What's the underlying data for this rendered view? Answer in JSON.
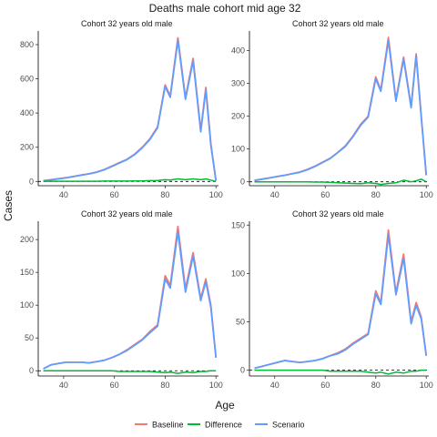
{
  "title": "Deaths male cohort mid age 32",
  "xlabel": "Age",
  "ylabel": "Cases",
  "legend": [
    {
      "name": "Baseline",
      "color": "#F8766D"
    },
    {
      "name": "Difference",
      "color": "#00BA38"
    },
    {
      "name": "Scenario",
      "color": "#619CFF"
    }
  ],
  "chart_data": [
    {
      "type": "line",
      "title": "Cohort 32 years old male",
      "xlim": [
        30,
        101
      ],
      "ylim": [
        -25,
        880
      ],
      "xticks": [
        40,
        60,
        80,
        100
      ],
      "yticks": [
        0,
        200,
        400,
        600,
        800
      ],
      "x": [
        32,
        35,
        38,
        41,
        44,
        47,
        50,
        53,
        56,
        59,
        62,
        65,
        68,
        71,
        74,
        77,
        80,
        82,
        85,
        88,
        91,
        94,
        96,
        98,
        100
      ],
      "series": [
        {
          "name": "Baseline",
          "values": [
            5,
            10,
            16,
            22,
            30,
            38,
            45,
            55,
            70,
            90,
            110,
            130,
            160,
            200,
            250,
            320,
            565,
            500,
            840,
            490,
            720,
            300,
            550,
            220,
            5
          ]
        },
        {
          "name": "Scenario",
          "values": [
            4,
            9,
            15,
            21,
            29,
            37,
            44,
            54,
            68,
            88,
            108,
            128,
            157,
            197,
            245,
            314,
            555,
            492,
            825,
            480,
            705,
            290,
            535,
            212,
            5
          ]
        },
        {
          "name": "Difference",
          "values": [
            1,
            1,
            1,
            1,
            1,
            1,
            1,
            1,
            2,
            2,
            2,
            2,
            3,
            3,
            5,
            6,
            10,
            8,
            15,
            10,
            15,
            10,
            15,
            8,
            0
          ]
        }
      ]
    },
    {
      "type": "line",
      "title": "Cohort 32 years old male",
      "xlim": [
        30,
        101
      ],
      "ylim": [
        -12,
        460
      ],
      "xticks": [
        40,
        60,
        80,
        100
      ],
      "yticks": [
        0,
        100,
        200,
        300,
        400
      ],
      "x": [
        32,
        35,
        38,
        41,
        44,
        47,
        50,
        53,
        56,
        59,
        62,
        65,
        68,
        71,
        74,
        77,
        80,
        82,
        85,
        88,
        91,
        94,
        96,
        98,
        100
      ],
      "series": [
        {
          "name": "Baseline",
          "values": [
            4,
            8,
            12,
            16,
            20,
            25,
            30,
            38,
            48,
            60,
            72,
            90,
            110,
            140,
            175,
            200,
            320,
            280,
            440,
            250,
            380,
            230,
            390,
            200,
            20
          ]
        },
        {
          "name": "Scenario",
          "values": [
            4,
            8,
            12,
            16,
            20,
            25,
            29,
            37,
            47,
            59,
            71,
            89,
            108,
            138,
            172,
            197,
            314,
            276,
            430,
            246,
            374,
            226,
            384,
            197,
            20
          ]
        },
        {
          "name": "Difference",
          "values": [
            0,
            0,
            0,
            0,
            0,
            0,
            0,
            0,
            -1,
            -1,
            -2,
            -3,
            -4,
            -5,
            -6,
            -3,
            -5,
            -8,
            -5,
            -3,
            5,
            0,
            3,
            8,
            0
          ]
        }
      ]
    },
    {
      "type": "line",
      "title": "Cohort 32 years old male",
      "xlim": [
        30,
        101
      ],
      "ylim": [
        -8,
        228
      ],
      "xticks": [
        40,
        60,
        80,
        100
      ],
      "yticks": [
        0,
        50,
        100,
        150,
        200
      ],
      "x": [
        32,
        35,
        38,
        41,
        44,
        47,
        50,
        53,
        56,
        59,
        62,
        65,
        68,
        71,
        74,
        77,
        80,
        82,
        85,
        88,
        91,
        94,
        96,
        98,
        100
      ],
      "series": [
        {
          "name": "Baseline",
          "values": [
            3,
            9,
            11,
            13,
            13,
            13,
            12,
            14,
            16,
            20,
            25,
            32,
            40,
            48,
            60,
            70,
            145,
            130,
            220,
            125,
            180,
            110,
            140,
            100,
            20
          ]
        },
        {
          "name": "Scenario",
          "values": [
            3,
            9,
            11,
            13,
            13,
            13,
            12,
            14,
            16,
            20,
            25,
            31,
            39,
            47,
            58,
            68,
            140,
            126,
            212,
            120,
            175,
            107,
            136,
            97,
            20
          ]
        },
        {
          "name": "Difference",
          "values": [
            0,
            0,
            0,
            0,
            0,
            0,
            0,
            0,
            0,
            0,
            -1,
            -1,
            -1,
            -1,
            -1,
            -2,
            -3,
            -2,
            -4,
            -2,
            -3,
            -1,
            -1,
            0,
            0
          ]
        }
      ]
    },
    {
      "type": "line",
      "title": "Cohort 32 years old male",
      "xlim": [
        30,
        101
      ],
      "ylim": [
        -6,
        154
      ],
      "xticks": [
        40,
        60,
        80,
        100
      ],
      "yticks": [
        0,
        50,
        100,
        150
      ],
      "x": [
        32,
        35,
        38,
        41,
        44,
        47,
        50,
        53,
        56,
        59,
        62,
        65,
        68,
        71,
        74,
        77,
        80,
        82,
        85,
        88,
        91,
        94,
        96,
        98,
        100
      ],
      "series": [
        {
          "name": "Baseline",
          "values": [
            2,
            4,
            6,
            8,
            10,
            9,
            8,
            9,
            10,
            12,
            15,
            18,
            22,
            28,
            33,
            38,
            82,
            70,
            145,
            80,
            120,
            50,
            70,
            55,
            15
          ]
        },
        {
          "name": "Scenario",
          "values": [
            2,
            4,
            6,
            8,
            10,
            9,
            8,
            9,
            10,
            12,
            15,
            17,
            21,
            27,
            32,
            37,
            79,
            68,
            140,
            78,
            116,
            48,
            67,
            53,
            15
          ]
        },
        {
          "name": "Difference",
          "values": [
            0,
            0,
            0,
            0,
            0,
            0,
            0,
            0,
            0,
            0,
            -1,
            -1,
            -1,
            -1,
            -1,
            -2,
            -3,
            -2,
            -4,
            -2,
            -3,
            -1,
            -1,
            0,
            0
          ]
        }
      ]
    }
  ]
}
